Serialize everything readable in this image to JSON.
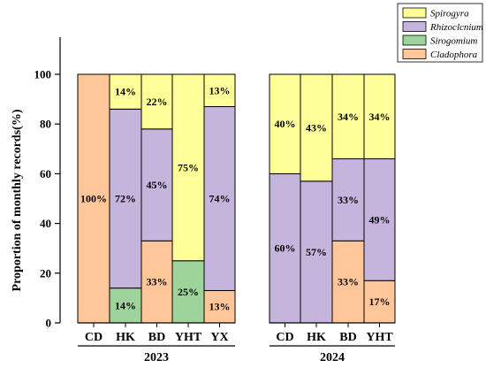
{
  "chart_data": {
    "type": "bar",
    "stacked": true,
    "ylabel": "Proportion of monthly records(%)",
    "xlabel": "",
    "ylim": [
      0,
      100
    ],
    "yticks": [
      0,
      20,
      40,
      60,
      80,
      100
    ],
    "legend": {
      "placement": "top-right",
      "items": [
        {
          "name": "Spirogyra",
          "color": "#ffff99"
        },
        {
          "name": "Rhizoclcnium",
          "color": "#c5b5dd"
        },
        {
          "name": "Sirogomium",
          "color": "#9ed49c"
        },
        {
          "name": "Cladophora",
          "color": "#ffc799"
        }
      ]
    },
    "series_order_bottom_to_top": [
      "Cladophora",
      "Sirogomium",
      "Rhizoclcnium",
      "Spirogyra"
    ],
    "groups": [
      {
        "year": "2023",
        "bars": [
          {
            "category": "CD",
            "segments": [
              {
                "series": "Cladophora",
                "value": 100,
                "label": "100%"
              }
            ]
          },
          {
            "category": "HK",
            "segments": [
              {
                "series": "Sirogomium",
                "value": 14,
                "label": "14%"
              },
              {
                "series": "Rhizoclcnium",
                "value": 72,
                "label": "72%"
              },
              {
                "series": "Spirogyra",
                "value": 14,
                "label": "14%"
              }
            ]
          },
          {
            "category": "BD",
            "segments": [
              {
                "series": "Cladophora",
                "value": 33,
                "label": "33%"
              },
              {
                "series": "Rhizoclcnium",
                "value": 45,
                "label": "45%"
              },
              {
                "series": "Spirogyra",
                "value": 22,
                "label": "22%"
              }
            ]
          },
          {
            "category": "YHT",
            "segments": [
              {
                "series": "Sirogomium",
                "value": 25,
                "label": "25%"
              },
              {
                "series": "Spirogyra",
                "value": 75,
                "label": "75%"
              }
            ]
          },
          {
            "category": "YX",
            "segments": [
              {
                "series": "Cladophora",
                "value": 13,
                "label": "13%"
              },
              {
                "series": "Rhizoclcnium",
                "value": 74,
                "label": "74%"
              },
              {
                "series": "Spirogyra",
                "value": 13,
                "label": "13%"
              }
            ]
          }
        ]
      },
      {
        "year": "2024",
        "bars": [
          {
            "category": "CD",
            "segments": [
              {
                "series": "Rhizoclcnium",
                "value": 60,
                "label": "60%"
              },
              {
                "series": "Spirogyra",
                "value": 40,
                "label": "40%"
              }
            ]
          },
          {
            "category": "HK",
            "segments": [
              {
                "series": "Rhizoclcnium",
                "value": 57,
                "label": "57%"
              },
              {
                "series": "Spirogyra",
                "value": 43,
                "label": "43%"
              }
            ]
          },
          {
            "category": "BD",
            "segments": [
              {
                "series": "Cladophora",
                "value": 33,
                "label": "33%"
              },
              {
                "series": "Rhizoclcnium",
                "value": 33,
                "label": "33%"
              },
              {
                "series": "Spirogyra",
                "value": 34,
                "label": "34%"
              }
            ]
          },
          {
            "category": "YHT",
            "segments": [
              {
                "series": "Cladophora",
                "value": 17,
                "label": "17%"
              },
              {
                "series": "Rhizoclcnium",
                "value": 49,
                "label": "49%"
              },
              {
                "series": "Spirogyra",
                "value": 34,
                "label": "34%"
              }
            ]
          }
        ]
      }
    ]
  }
}
